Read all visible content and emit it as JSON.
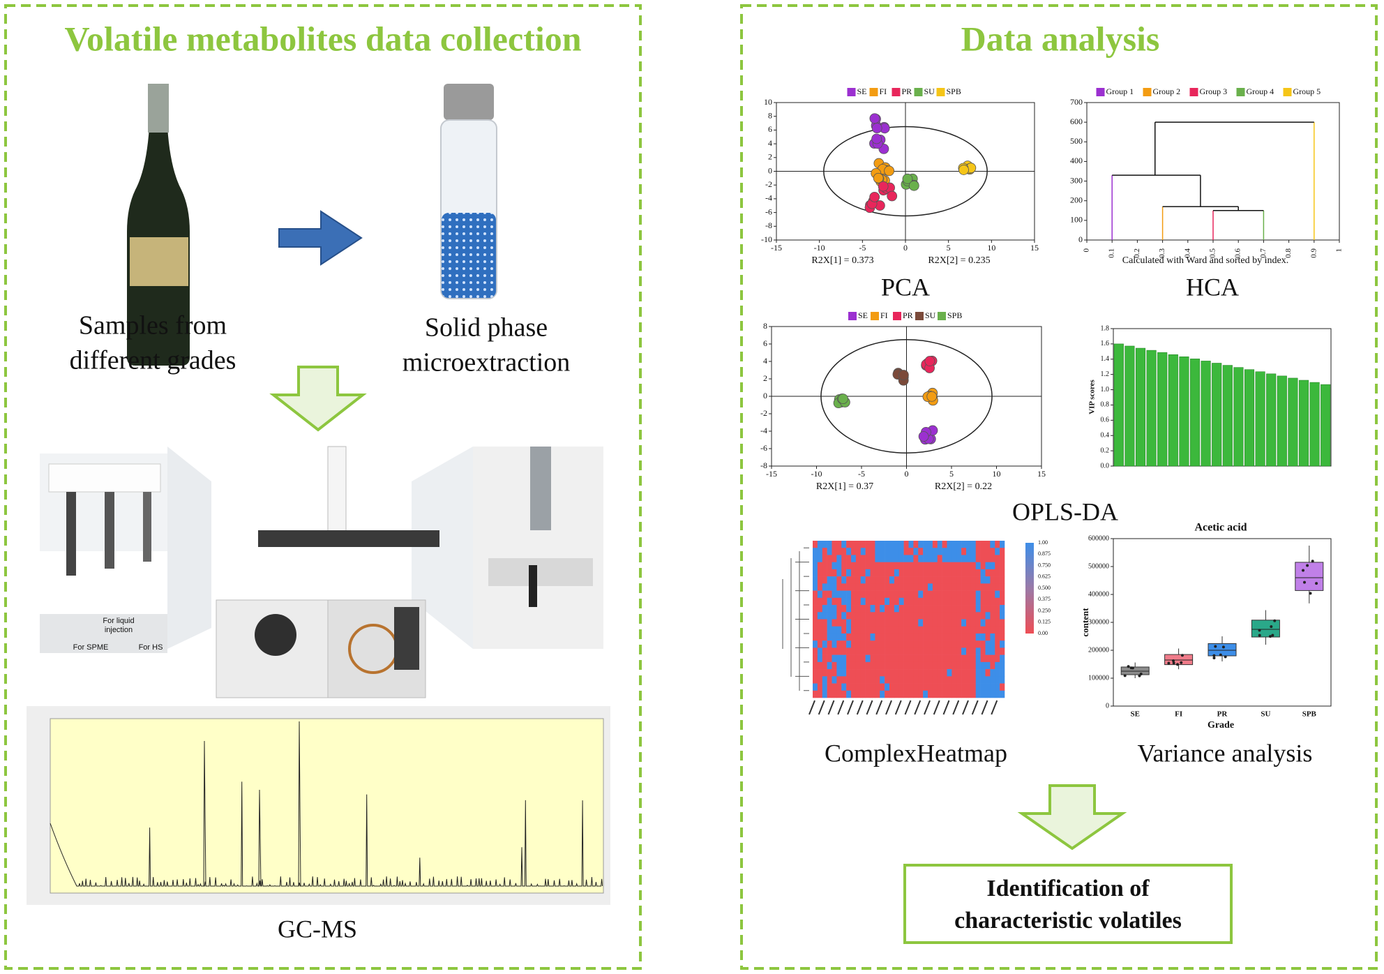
{
  "left_panel": {
    "title": "Volatile metabolites data collection",
    "sample_label": [
      "Samples from",
      "different grades"
    ],
    "spme_label": [
      "Solid phase",
      "microextraction"
    ],
    "instrument_labels": [
      "For SPME",
      "For HS"
    ],
    "liquid_label": [
      "For liquid",
      "injection"
    ],
    "gcms_label": "GC-MS"
  },
  "right_panel": {
    "title": "Data analysis",
    "pca": {
      "legend": [
        {
          "name": "SE",
          "color": "#9b30d0"
        },
        {
          "name": "FI",
          "color": "#f39c12"
        },
        {
          "name": "PR",
          "color": "#e8265b"
        },
        {
          "name": "SU",
          "color": "#6ab04c"
        },
        {
          "name": "SPB",
          "color": "#f5c518"
        }
      ],
      "yticks": [
        10,
        8,
        6,
        4,
        2,
        0,
        -2,
        -4,
        -6,
        -8,
        -10
      ],
      "xticks": [
        -15,
        -10,
        -5,
        0,
        5,
        10,
        15
      ],
      "x_annotations": [
        "R2X[1] = 0.373",
        "R2X[2] = 0.235"
      ],
      "label": "PCA"
    },
    "hca": {
      "legend": [
        {
          "name": "Group 1",
          "color": "#9b30d0"
        },
        {
          "name": "Group 2",
          "color": "#f39c12"
        },
        {
          "name": "Group 3",
          "color": "#e8265b"
        },
        {
          "name": "Group 4",
          "color": "#6ab04c"
        },
        {
          "name": "Group 5",
          "color": "#f5c518"
        }
      ],
      "yticks": [
        700,
        600,
        500,
        400,
        300,
        200,
        100,
        0
      ],
      "xticks": [
        0,
        0.1,
        0.2,
        0.3,
        0.4,
        0.5,
        0.6,
        0.7,
        0.8,
        0.9,
        1
      ],
      "caption": "Calculated with Ward and sorted by index.",
      "label": "HCA"
    },
    "opls_da": {
      "legend": [
        {
          "name": "SE",
          "color": "#9b30d0"
        },
        {
          "name": "FI",
          "color": "#f39c12"
        },
        {
          "name": "PR",
          "color": "#e8265b"
        },
        {
          "name": "SU",
          "color": "#7b4a3a"
        },
        {
          "name": "SPB",
          "color": "#6ab04c"
        }
      ],
      "yticks": [
        8,
        6,
        4,
        2,
        0,
        -2,
        -4,
        -6,
        -8
      ],
      "xticks": [
        -15,
        -10,
        -5,
        0,
        5,
        10,
        15
      ],
      "x_annotations": [
        "R2X[1] = 0.37",
        "R2X[2] = 0.22"
      ],
      "label": "OPLS-DA"
    },
    "vip": {
      "y_label": "VIP scores",
      "yticks": [
        "1.8",
        "1.6",
        "1.4",
        "1.2",
        "1.0",
        "0.8",
        "0.6",
        "0.4",
        "0.2",
        "0.0"
      ]
    },
    "heatmap": {
      "scale_ticks": [
        "1.00",
        "0.875",
        "0.750",
        "0.625",
        "0.500",
        "0.375",
        "0.250",
        "0.125",
        "0.00"
      ],
      "label": "ComplexHeatmap"
    },
    "boxplot": {
      "title": "Acetic acid",
      "y_label": "content",
      "x_label": "Grade",
      "categories": [
        "SE",
        "FI",
        "PR",
        "SU",
        "SPB"
      ],
      "yticks": [
        600000,
        500000,
        400000,
        300000,
        200000,
        100000,
        0
      ],
      "label": "Variance analysis"
    },
    "conclusion": [
      "Identification of",
      "characteristic volatiles"
    ]
  }
}
